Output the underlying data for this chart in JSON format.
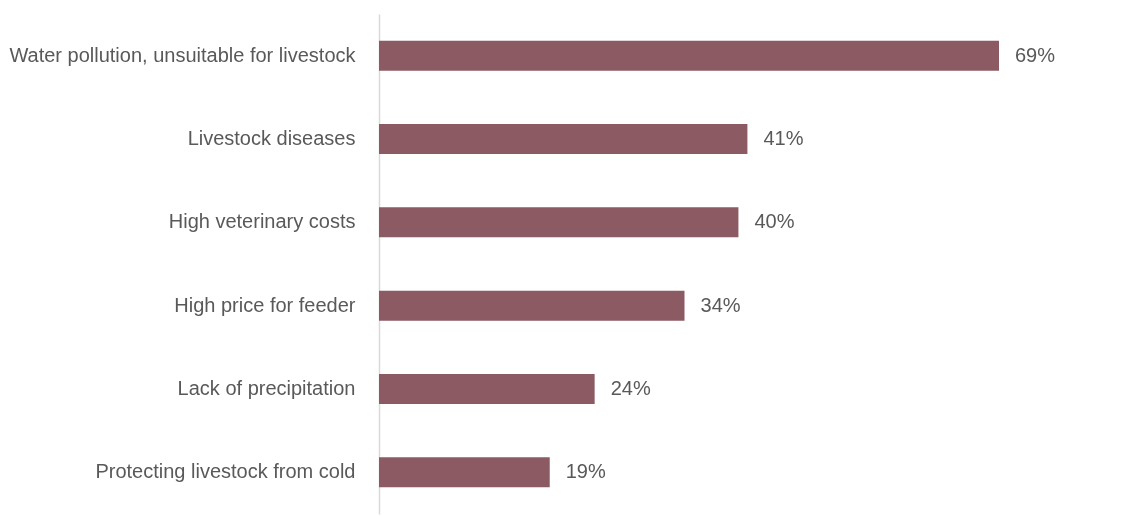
{
  "chart_data": {
    "type": "bar",
    "orientation": "horizontal",
    "categories": [
      "Water pollution, unsuitable for livestock",
      "Livestock diseases",
      "High veterinary costs",
      "High price for feeder",
      "Lack of precipitation",
      "Protecting livestock from cold"
    ],
    "values": [
      69,
      41,
      40,
      34,
      24,
      19
    ],
    "value_labels": [
      "69%",
      "41%",
      "40%",
      "34%",
      "24%",
      "19%"
    ],
    "color": "#8b5a62"
  }
}
